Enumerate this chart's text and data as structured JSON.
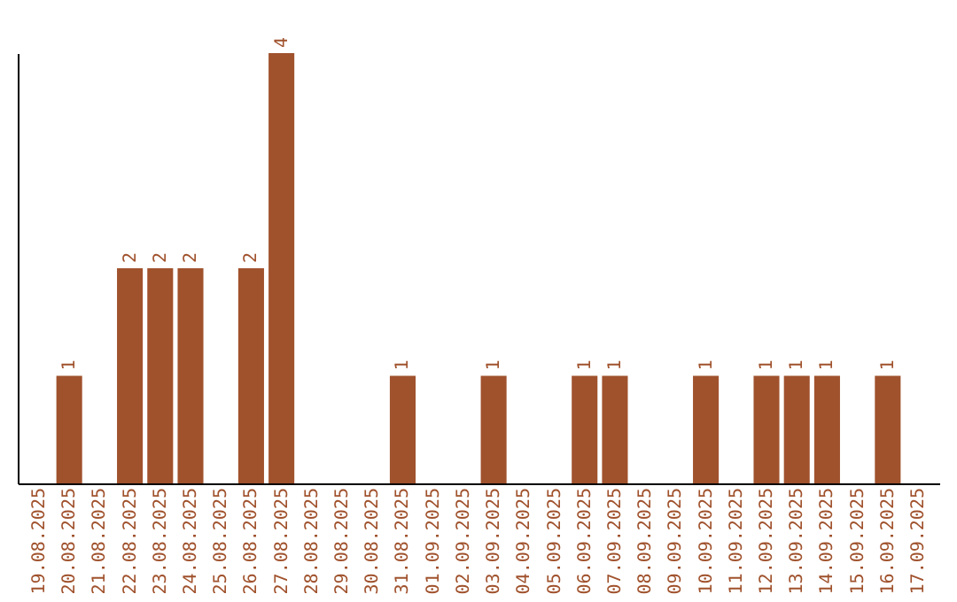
{
  "chart_data": {
    "type": "bar",
    "categories": [
      "19.08.2025",
      "20.08.2025",
      "21.08.2025",
      "22.08.2025",
      "23.08.2025",
      "24.08.2025",
      "25.08.2025",
      "26.08.2025",
      "27.08.2025",
      "28.08.2025",
      "29.08.2025",
      "30.08.2025",
      "31.08.2025",
      "01.09.2025",
      "02.09.2025",
      "03.09.2025",
      "04.09.2025",
      "05.09.2025",
      "06.09.2025",
      "07.09.2025",
      "08.09.2025",
      "09.09.2025",
      "10.09.2025",
      "11.09.2025",
      "12.09.2025",
      "13.09.2025",
      "14.09.2025",
      "15.09.2025",
      "16.09.2025",
      "17.09.2025"
    ],
    "values": [
      null,
      1,
      null,
      2,
      2,
      2,
      null,
      2,
      4,
      null,
      null,
      null,
      1,
      null,
      null,
      1,
      null,
      null,
      1,
      1,
      null,
      null,
      1,
      null,
      1,
      1,
      1,
      null,
      1,
      null
    ],
    "color": "#a0522d",
    "data_labels": true
  }
}
